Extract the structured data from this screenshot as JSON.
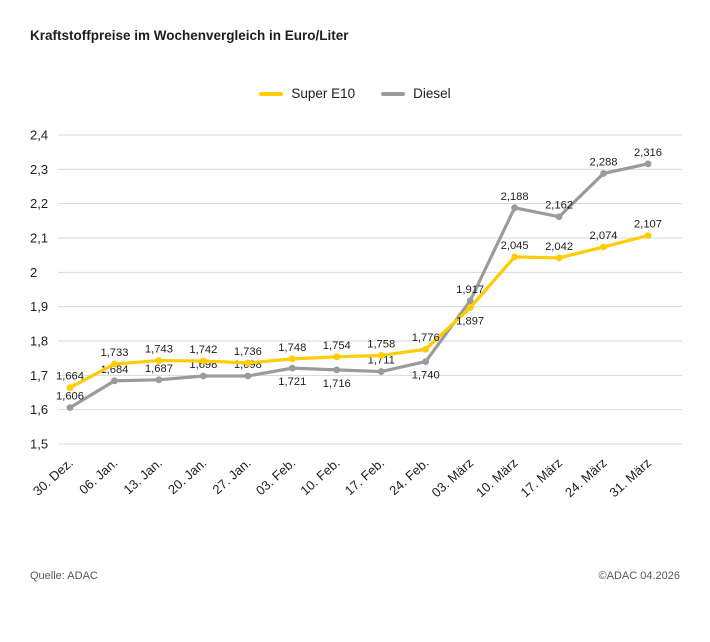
{
  "title": "Kraftstoffpreise im Wochenvergleich in Euro/Liter",
  "footer": {
    "source": "Quelle: ADAC",
    "copyright": "©ADAC 04.2026"
  },
  "chart_data": {
    "type": "line",
    "title": "Kraftstoffpreise im Wochenvergleich in Euro/Liter",
    "grid": "horizontal",
    "legend_position": "top-center",
    "ylim": [
      1.5,
      2.4
    ],
    "x": [
      "30. Dez.",
      "06. Jan.",
      "13. Jan.",
      "20. Jan.",
      "27. Jan.",
      "03. Feb.",
      "10. Feb.",
      "17. Feb.",
      "24. Feb.",
      "03. März",
      "10. März",
      "17. März",
      "24. März",
      "31. März"
    ],
    "y_ticks": [
      {
        "v": 2.4,
        "label": "2,4"
      },
      {
        "v": 2.3,
        "label": "2,3"
      },
      {
        "v": 2.2,
        "label": "2,2"
      },
      {
        "v": 2.1,
        "label": "2,1"
      },
      {
        "v": 2.0,
        "label": "2"
      },
      {
        "v": 1.9,
        "label": "1,9"
      },
      {
        "v": 1.8,
        "label": "1,8"
      },
      {
        "v": 1.7,
        "label": "1,7"
      },
      {
        "v": 1.6,
        "label": "1,6"
      },
      {
        "v": 1.5,
        "label": "1,5"
      }
    ],
    "series": [
      {
        "name": "Super E10",
        "color": "#FFCC00",
        "values": [
          1.664,
          1.733,
          1.743,
          1.742,
          1.736,
          1.748,
          1.754,
          1.758,
          1.776,
          1.897,
          2.045,
          2.042,
          2.074,
          2.107
        ],
        "labels": [
          "1,664",
          "1,733",
          "1,743",
          "1,742",
          "1,736",
          "1,748",
          "1,754",
          "1,758",
          "1,776",
          "1,897",
          "2,045",
          "2,042",
          "2,074",
          "2,107"
        ],
        "label_pos": [
          "above",
          "above",
          "above",
          "above",
          "above",
          "above",
          "above",
          "above",
          "above",
          "below",
          "above",
          "above",
          "above",
          "above"
        ]
      },
      {
        "name": "Diesel",
        "color": "#9B9B9B",
        "values": [
          1.606,
          1.684,
          1.687,
          1.698,
          1.698,
          1.721,
          1.716,
          1.711,
          1.74,
          1.917,
          2.188,
          2.162,
          2.288,
          2.316
        ],
        "labels": [
          "1,606",
          "1,684",
          "1,687",
          "1,698",
          "1,698",
          "1,721",
          "1,716",
          "1,711",
          "1,740",
          "1,917",
          "2,188",
          "2,162",
          "2,288",
          "2,316"
        ],
        "label_pos": [
          "above",
          "above",
          "above",
          "above",
          "above",
          "below",
          "below",
          "above",
          "below",
          "above",
          "above",
          "above",
          "above",
          "above"
        ]
      }
    ]
  }
}
